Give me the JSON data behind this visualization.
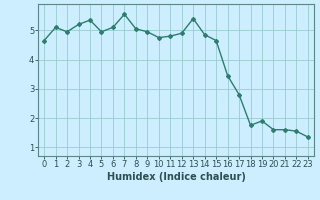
{
  "xlabel": "Humidex (Indice chaleur)",
  "x_values": [
    0,
    1,
    2,
    3,
    4,
    5,
    6,
    7,
    8,
    9,
    10,
    11,
    12,
    13,
    14,
    15,
    16,
    17,
    18,
    19,
    20,
    21,
    22,
    23
  ],
  "y_values": [
    4.65,
    5.1,
    4.95,
    5.2,
    5.35,
    4.95,
    5.1,
    5.55,
    5.05,
    4.95,
    4.75,
    4.8,
    4.9,
    5.4,
    4.85,
    4.65,
    3.45,
    2.8,
    1.75,
    1.9,
    1.6,
    1.6,
    1.55,
    1.35
  ],
  "line_color": "#2e7d6e",
  "marker": "D",
  "marker_size": 2,
  "bg_color": "#cceeff",
  "grid_color": "#99cccc",
  "ylim": [
    0.7,
    5.9
  ],
  "xlim": [
    -0.5,
    23.5
  ],
  "yticks": [
    1,
    2,
    3,
    4,
    5
  ],
  "xticks": [
    0,
    1,
    2,
    3,
    4,
    5,
    6,
    7,
    8,
    9,
    10,
    11,
    12,
    13,
    14,
    15,
    16,
    17,
    18,
    19,
    20,
    21,
    22,
    23
  ],
  "xlabel_fontsize": 7,
  "tick_fontsize": 6,
  "line_width": 1.0
}
